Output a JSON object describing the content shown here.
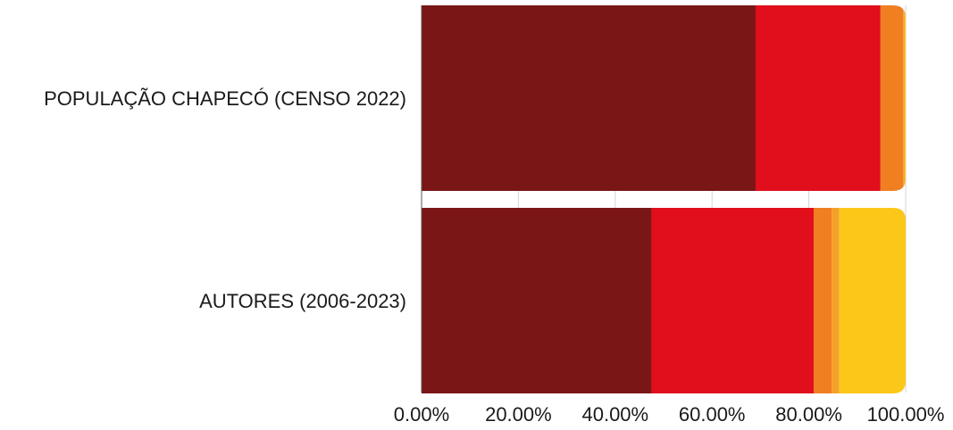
{
  "chart_data": {
    "type": "bar",
    "orientation": "horizontal",
    "stacked": true,
    "categories": [
      "POPULAÇÃO CHAPECÓ (CENSO 2022)",
      "AUTORES (2006-2023)"
    ],
    "series": [
      {
        "color": "#7a1616",
        "values": [
          69.0,
          47.5
        ]
      },
      {
        "color": "#e00f1b",
        "values": [
          25.8,
          33.5
        ]
      },
      {
        "color": "#f07f22",
        "values": [
          4.7,
          3.7
        ]
      },
      {
        "color": "#f4a12a",
        "values": [
          0.3,
          1.6
        ]
      },
      {
        "color": "#fbc81a",
        "values": [
          0.2,
          13.7
        ]
      }
    ],
    "xlim": [
      0,
      100
    ],
    "xticks": [
      0,
      20,
      40,
      60,
      80,
      100
    ],
    "xtick_labels": [
      "0.00%",
      "20.00%",
      "40.00%",
      "60.00%",
      "80.00%",
      "100.00%"
    ],
    "grid": true,
    "legend": "none",
    "title": "",
    "xlabel": "",
    "ylabel": ""
  }
}
